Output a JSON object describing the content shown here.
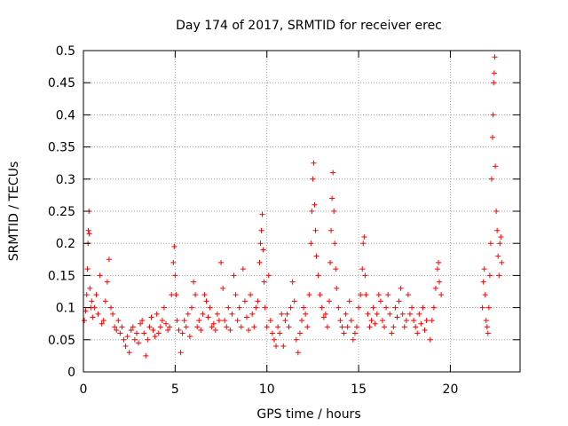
{
  "chart_data": {
    "type": "scatter",
    "title": "Day 174 of 2017, SRMTID for receiver erec",
    "xlabel": "GPS time / hours",
    "ylabel": "SRMTID / TECUs",
    "xlim": [
      0,
      23.8
    ],
    "ylim": [
      0,
      0.5
    ],
    "grid": true,
    "marker": "+",
    "colors": {
      "points": "#ff0000",
      "grid": "#a0a0a0",
      "axis": "#000000"
    },
    "xticks": [
      {
        "value": 0,
        "label": "0"
      },
      {
        "value": 5,
        "label": "5"
      },
      {
        "value": 10,
        "label": "10"
      },
      {
        "value": 15,
        "label": "15"
      },
      {
        "value": 20,
        "label": "20"
      }
    ],
    "yticks": [
      {
        "value": 0,
        "label": "0"
      },
      {
        "value": 0.05,
        "label": "0.05"
      },
      {
        "value": 0.1,
        "label": "0.1"
      },
      {
        "value": 0.15,
        "label": "0.15"
      },
      {
        "value": 0.2,
        "label": "0.2"
      },
      {
        "value": 0.25,
        "label": "0.25"
      },
      {
        "value": 0.3,
        "label": "0.3"
      },
      {
        "value": 0.35,
        "label": "0.35"
      },
      {
        "value": 0.4,
        "label": "0.4"
      },
      {
        "value": 0.45,
        "label": "0.45"
      },
      {
        "value": 0.5,
        "label": "0.5"
      }
    ],
    "series": [
      {
        "name": "SRMTID",
        "points": [
          [
            0.05,
            0.08
          ],
          [
            0.12,
            0.095
          ],
          [
            0.18,
            0.12
          ],
          [
            0.22,
            0.16
          ],
          [
            0.25,
            0.2
          ],
          [
            0.27,
            0.22
          ],
          [
            0.3,
            0.25
          ],
          [
            0.32,
            0.215
          ],
          [
            0.35,
            0.13
          ],
          [
            0.4,
            0.1
          ],
          [
            0.45,
            0.11
          ],
          [
            0.5,
            0.085
          ],
          [
            0.6,
            0.1
          ],
          [
            0.7,
            0.12
          ],
          [
            0.8,
            0.09
          ],
          [
            0.9,
            0.15
          ],
          [
            1.0,
            0.075
          ],
          [
            1.1,
            0.08
          ],
          [
            1.2,
            0.11
          ],
          [
            1.3,
            0.14
          ],
          [
            1.4,
            0.175
          ],
          [
            1.5,
            0.1
          ],
          [
            1.6,
            0.09
          ],
          [
            1.7,
            0.07
          ],
          [
            1.8,
            0.065
          ],
          [
            1.9,
            0.08
          ],
          [
            2.0,
            0.06
          ],
          [
            2.1,
            0.07
          ],
          [
            2.2,
            0.05
          ],
          [
            2.3,
            0.04
          ],
          [
            2.4,
            0.055
          ],
          [
            2.5,
            0.03
          ],
          [
            2.6,
            0.065
          ],
          [
            2.7,
            0.07
          ],
          [
            2.8,
            0.05
          ],
          [
            2.9,
            0.06
          ],
          [
            3.0,
            0.045
          ],
          [
            3.1,
            0.075
          ],
          [
            3.2,
            0.08
          ],
          [
            3.3,
            0.06
          ],
          [
            3.4,
            0.025
          ],
          [
            3.5,
            0.05
          ],
          [
            3.6,
            0.07
          ],
          [
            3.7,
            0.085
          ],
          [
            3.8,
            0.065
          ],
          [
            3.9,
            0.055
          ],
          [
            4.0,
            0.09
          ],
          [
            4.1,
            0.06
          ],
          [
            4.2,
            0.07
          ],
          [
            4.3,
            0.08
          ],
          [
            4.4,
            0.1
          ],
          [
            4.5,
            0.075
          ],
          [
            4.6,
            0.065
          ],
          [
            4.7,
            0.07
          ],
          [
            4.8,
            0.12
          ],
          [
            4.9,
            0.17
          ],
          [
            4.95,
            0.195
          ],
          [
            5.0,
            0.15
          ],
          [
            5.05,
            0.12
          ],
          [
            5.1,
            0.08
          ],
          [
            5.2,
            0.065
          ],
          [
            5.3,
            0.03
          ],
          [
            5.4,
            0.06
          ],
          [
            5.5,
            0.08
          ],
          [
            5.6,
            0.07
          ],
          [
            5.7,
            0.09
          ],
          [
            5.8,
            0.055
          ],
          [
            5.9,
            0.1
          ],
          [
            6.0,
            0.14
          ],
          [
            6.1,
            0.12
          ],
          [
            6.2,
            0.07
          ],
          [
            6.3,
            0.08
          ],
          [
            6.4,
            0.065
          ],
          [
            6.5,
            0.09
          ],
          [
            6.6,
            0.12
          ],
          [
            6.7,
            0.11
          ],
          [
            6.8,
            0.085
          ],
          [
            6.9,
            0.1
          ],
          [
            7.0,
            0.07
          ],
          [
            7.1,
            0.075
          ],
          [
            7.2,
            0.065
          ],
          [
            7.3,
            0.09
          ],
          [
            7.4,
            0.08
          ],
          [
            7.5,
            0.17
          ],
          [
            7.6,
            0.13
          ],
          [
            7.7,
            0.08
          ],
          [
            7.8,
            0.07
          ],
          [
            7.9,
            0.1
          ],
          [
            8.0,
            0.065
          ],
          [
            8.1,
            0.09
          ],
          [
            8.2,
            0.15
          ],
          [
            8.3,
            0.12
          ],
          [
            8.4,
            0.08
          ],
          [
            8.5,
            0.1
          ],
          [
            8.6,
            0.07
          ],
          [
            8.7,
            0.16
          ],
          [
            8.8,
            0.11
          ],
          [
            8.9,
            0.085
          ],
          [
            9.0,
            0.065
          ],
          [
            9.1,
            0.12
          ],
          [
            9.2,
            0.09
          ],
          [
            9.3,
            0.07
          ],
          [
            9.4,
            0.1
          ],
          [
            9.5,
            0.11
          ],
          [
            9.6,
            0.17
          ],
          [
            9.65,
            0.2
          ],
          [
            9.7,
            0.22
          ],
          [
            9.75,
            0.245
          ],
          [
            9.8,
            0.19
          ],
          [
            9.85,
            0.14
          ],
          [
            9.9,
            0.1
          ],
          [
            10.0,
            0.07
          ],
          [
            10.1,
            0.15
          ],
          [
            10.2,
            0.08
          ],
          [
            10.3,
            0.06
          ],
          [
            10.4,
            0.05
          ],
          [
            10.5,
            0.04
          ],
          [
            10.6,
            0.07
          ],
          [
            10.7,
            0.06
          ],
          [
            10.8,
            0.09
          ],
          [
            10.9,
            0.04
          ],
          [
            11.0,
            0.08
          ],
          [
            11.1,
            0.09
          ],
          [
            11.2,
            0.07
          ],
          [
            11.3,
            0.1
          ],
          [
            11.4,
            0.14
          ],
          [
            11.5,
            0.11
          ],
          [
            11.6,
            0.05
          ],
          [
            11.7,
            0.03
          ],
          [
            11.8,
            0.06
          ],
          [
            11.9,
            0.08
          ],
          [
            12.0,
            0.1
          ],
          [
            12.1,
            0.09
          ],
          [
            12.2,
            0.07
          ],
          [
            12.3,
            0.12
          ],
          [
            12.4,
            0.2
          ],
          [
            12.45,
            0.25
          ],
          [
            12.5,
            0.3
          ],
          [
            12.55,
            0.325
          ],
          [
            12.6,
            0.26
          ],
          [
            12.65,
            0.22
          ],
          [
            12.7,
            0.18
          ],
          [
            12.8,
            0.15
          ],
          [
            12.9,
            0.12
          ],
          [
            13.0,
            0.1
          ],
          [
            13.1,
            0.085
          ],
          [
            13.2,
            0.09
          ],
          [
            13.3,
            0.07
          ],
          [
            13.4,
            0.11
          ],
          [
            13.45,
            0.17
          ],
          [
            13.5,
            0.22
          ],
          [
            13.55,
            0.27
          ],
          [
            13.6,
            0.31
          ],
          [
            13.65,
            0.25
          ],
          [
            13.7,
            0.2
          ],
          [
            13.75,
            0.16
          ],
          [
            13.8,
            0.13
          ],
          [
            13.9,
            0.1
          ],
          [
            14.0,
            0.08
          ],
          [
            14.1,
            0.07
          ],
          [
            14.2,
            0.06
          ],
          [
            14.3,
            0.09
          ],
          [
            14.4,
            0.07
          ],
          [
            14.5,
            0.11
          ],
          [
            14.6,
            0.08
          ],
          [
            14.7,
            0.05
          ],
          [
            14.8,
            0.06
          ],
          [
            14.9,
            0.07
          ],
          [
            15.0,
            0.1
          ],
          [
            15.1,
            0.12
          ],
          [
            15.2,
            0.16
          ],
          [
            15.25,
            0.2
          ],
          [
            15.3,
            0.21
          ],
          [
            15.35,
            0.15
          ],
          [
            15.4,
            0.12
          ],
          [
            15.5,
            0.09
          ],
          [
            15.6,
            0.07
          ],
          [
            15.7,
            0.08
          ],
          [
            15.8,
            0.1
          ],
          [
            15.9,
            0.075
          ],
          [
            16.0,
            0.09
          ],
          [
            16.1,
            0.12
          ],
          [
            16.2,
            0.11
          ],
          [
            16.3,
            0.08
          ],
          [
            16.4,
            0.07
          ],
          [
            16.5,
            0.1
          ],
          [
            16.6,
            0.12
          ],
          [
            16.7,
            0.09
          ],
          [
            16.8,
            0.06
          ],
          [
            16.9,
            0.07
          ],
          [
            17.0,
            0.1
          ],
          [
            17.1,
            0.085
          ],
          [
            17.2,
            0.11
          ],
          [
            17.3,
            0.13
          ],
          [
            17.4,
            0.09
          ],
          [
            17.5,
            0.07
          ],
          [
            17.6,
            0.08
          ],
          [
            17.7,
            0.12
          ],
          [
            17.8,
            0.09
          ],
          [
            17.9,
            0.1
          ],
          [
            18.0,
            0.08
          ],
          [
            18.1,
            0.07
          ],
          [
            18.2,
            0.06
          ],
          [
            18.3,
            0.09
          ],
          [
            18.4,
            0.075
          ],
          [
            18.5,
            0.1
          ],
          [
            18.6,
            0.065
          ],
          [
            18.7,
            0.08
          ],
          [
            18.9,
            0.05
          ],
          [
            19.0,
            0.08
          ],
          [
            19.1,
            0.1
          ],
          [
            19.2,
            0.13
          ],
          [
            19.3,
            0.16
          ],
          [
            19.35,
            0.17
          ],
          [
            19.4,
            0.14
          ],
          [
            19.5,
            0.12
          ],
          [
            21.75,
            0.1
          ],
          [
            21.8,
            0.14
          ],
          [
            21.85,
            0.16
          ],
          [
            21.9,
            0.12
          ],
          [
            21.95,
            0.08
          ],
          [
            22.0,
            0.07
          ],
          [
            22.05,
            0.06
          ],
          [
            22.1,
            0.1
          ],
          [
            22.15,
            0.15
          ],
          [
            22.2,
            0.2
          ],
          [
            22.25,
            0.3
          ],
          [
            22.3,
            0.365
          ],
          [
            22.33,
            0.4
          ],
          [
            22.36,
            0.45
          ],
          [
            22.39,
            0.465
          ],
          [
            22.42,
            0.49
          ],
          [
            22.45,
            0.32
          ],
          [
            22.5,
            0.25
          ],
          [
            22.55,
            0.22
          ],
          [
            22.6,
            0.18
          ],
          [
            22.65,
            0.15
          ],
          [
            22.7,
            0.2
          ],
          [
            22.75,
            0.21
          ],
          [
            22.8,
            0.17
          ]
        ]
      }
    ]
  }
}
